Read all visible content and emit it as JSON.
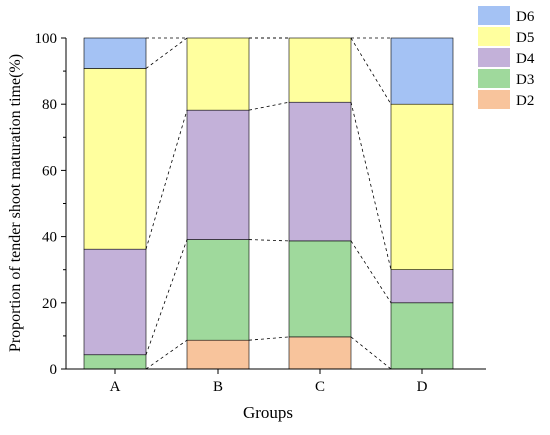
{
  "chart_data": {
    "type": "bar",
    "stacked": true,
    "categories": [
      "A",
      "B",
      "C",
      "D"
    ],
    "series": [
      {
        "name": "D2",
        "color": "#F8C49C",
        "values": [
          0,
          8.7,
          9.7,
          0
        ]
      },
      {
        "name": "D3",
        "color": "#9FD99C",
        "values": [
          4.3,
          30.4,
          29.0,
          20.0
        ]
      },
      {
        "name": "D4",
        "color": "#C3B1D9",
        "values": [
          31.9,
          39.1,
          41.9,
          10.0
        ]
      },
      {
        "name": "D5",
        "color": "#FFFF9E",
        "values": [
          54.6,
          21.8,
          19.4,
          50.0
        ]
      },
      {
        "name": "D6",
        "color": "#A4C2F4",
        "values": [
          9.2,
          0,
          0,
          20.0
        ]
      }
    ],
    "legend_order": [
      "D6",
      "D5",
      "D4",
      "D3",
      "D2"
    ],
    "legend_position": "top-right",
    "xlabel": "Groups",
    "ylabel": "Proportion of tender shoot maturation time(%)",
    "ylim": [
      0,
      100
    ],
    "yticks": [
      0,
      20,
      40,
      60,
      80,
      100
    ],
    "grid": false,
    "connector_lines": "dashed"
  }
}
